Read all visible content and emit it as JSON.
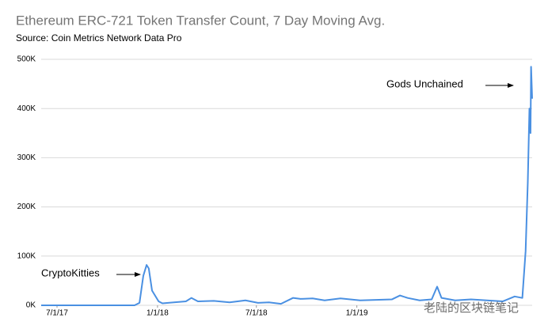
{
  "chart_data": {
    "type": "line",
    "title": "Ethereum ERC-721 Token Transfer Count, 7 Day Moving Avg.",
    "subtitle": "Source: Coin Metrics Network Data Pro",
    "annotations": [
      "CryptoKitties",
      "Gods Unchained"
    ],
    "watermark": "老陆的区块链笔记",
    "x": [
      "2017-06-02",
      "2017-11-20",
      "2017-11-29",
      "2017-12-06",
      "2017-12-12",
      "2017-12-16",
      "2017-12-22",
      "2018-01-03",
      "2018-01-10",
      "2018-01-31",
      "2018-02-22",
      "2018-03-04",
      "2018-03-16",
      "2018-04-14",
      "2018-05-13",
      "2018-06-11",
      "2018-07-04",
      "2018-07-24",
      "2018-08-15",
      "2018-09-06",
      "2018-09-20",
      "2018-10-12",
      "2018-11-03",
      "2018-12-02",
      "2019-01-07",
      "2019-02-05",
      "2019-03-06",
      "2019-03-21",
      "2019-04-04",
      "2019-04-26",
      "2019-05-18",
      "2019-05-28",
      "2019-06-05",
      "2019-06-30",
      "2019-07-29",
      "2019-08-27",
      "2019-09-25",
      "2019-10-17",
      "2019-10-31",
      "2019-11-06",
      "2019-11-10",
      "2019-11-13",
      "2019-11-15",
      "2019-11-16",
      "2019-11-18"
    ],
    "series": [
      {
        "color": "#4a90e2",
        "values": [
          0,
          0,
          5000,
          60000,
          82000,
          75000,
          30000,
          8000,
          4000,
          6000,
          8000,
          15000,
          8000,
          9000,
          6000,
          10000,
          5000,
          6000,
          3000,
          15000,
          13000,
          14000,
          10000,
          14000,
          10000,
          11000,
          12000,
          20000,
          15000,
          10000,
          12000,
          38000,
          15000,
          10000,
          12000,
          10000,
          8000,
          18000,
          15000,
          110000,
          250000,
          400000,
          350000,
          485000,
          420000
        ]
      }
    ],
    "xlim": [
      "2017-06-02",
      "2019-11-18"
    ],
    "xticks": [
      {
        "value": "2017-07-01",
        "label": "7/1/17"
      },
      {
        "value": "2018-01-01",
        "label": "1/1/18"
      },
      {
        "value": "2018-07-01",
        "label": "7/1/18"
      },
      {
        "value": "2019-01-01",
        "label": "1/1/19"
      }
    ],
    "ylim": [
      0,
      500000
    ],
    "yticks": [
      {
        "value": 0,
        "label": "0K"
      },
      {
        "value": 100000,
        "label": "100K"
      },
      {
        "value": 200000,
        "label": "200K"
      },
      {
        "value": 300000,
        "label": "300K"
      },
      {
        "value": 400000,
        "label": "400K"
      },
      {
        "value": 500000,
        "label": "500K"
      }
    ],
    "grid": true
  }
}
